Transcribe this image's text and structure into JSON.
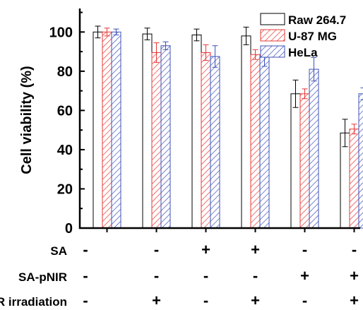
{
  "chart_data": {
    "type": "bar",
    "title": "",
    "xlabel": "",
    "ylabel": "Cell viability (%)",
    "ylim": [
      0,
      112
    ],
    "yticks": [
      0,
      20,
      40,
      60,
      80,
      100
    ],
    "grid": false,
    "legend_position": "top-right",
    "group_count": 6,
    "series": [
      {
        "name": "Raw 264.7",
        "color": "#000000",
        "pattern": "none",
        "values": [
          100,
          99,
          98.5,
          98,
          68.5,
          48.5
        ],
        "errors": [
          3,
          3,
          3,
          4.5,
          7,
          7
        ]
      },
      {
        "name": "U-87 MG",
        "color": "#e53935",
        "pattern": "hatch",
        "values": [
          100,
          89.5,
          89.5,
          88.5,
          68.5,
          50.5
        ],
        "errors": [
          2,
          5,
          4,
          2.5,
          2.5,
          2.5
        ]
      },
      {
        "name": "HeLa",
        "color": "#3f51b5",
        "pattern": "hatch",
        "values": [
          100,
          93,
          87.5,
          87.5,
          81,
          68.5
        ],
        "errors": [
          1.5,
          2,
          5.5,
          5,
          6,
          3
        ]
      }
    ],
    "conditions": [
      {
        "label": "SA",
        "marks": [
          "-",
          "-",
          "+",
          "+",
          "-",
          "-"
        ]
      },
      {
        "label": "SA-pNIR",
        "marks": [
          "-",
          "-",
          "-",
          "-",
          "+",
          "+"
        ]
      },
      {
        "label": "R irradiation",
        "marks": [
          "-",
          "+",
          "-",
          "+",
          "-",
          "+"
        ]
      }
    ]
  }
}
